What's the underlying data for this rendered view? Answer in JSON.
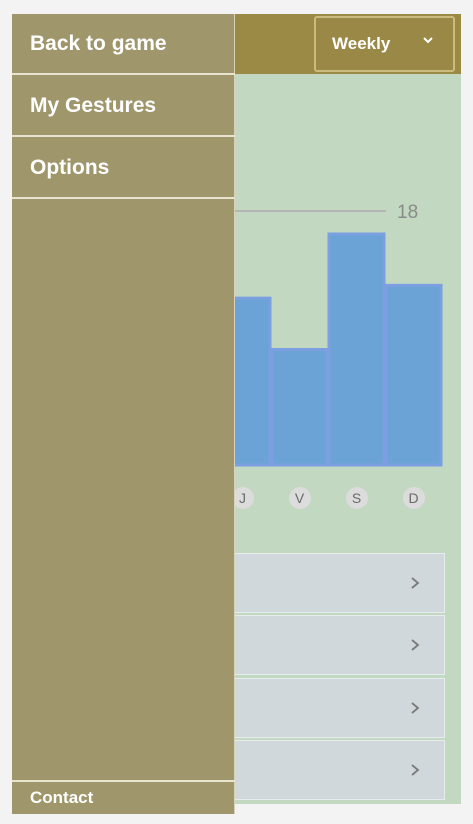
{
  "header": {
    "period_select": {
      "value": "Weekly",
      "icon": "chevron-down-icon"
    }
  },
  "chart_data": {
    "type": "bar",
    "categories": [
      "J",
      "V",
      "S",
      "D"
    ],
    "values": [
      13,
      9,
      18,
      14
    ],
    "reference_line": {
      "value": 18,
      "label": "18"
    },
    "ylim": [
      0,
      18
    ],
    "grid": false,
    "colors": {
      "bar": "#6ba3d6",
      "bar_border": "#7b9fe0",
      "reference_line": "#b5b5b5"
    }
  },
  "list": {
    "rows": [
      {
        "chevron": "chevron-right-icon"
      },
      {
        "chevron": "chevron-right-icon"
      },
      {
        "chevron": "chevron-right-icon"
      },
      {
        "chevron": "chevron-right-icon"
      }
    ]
  },
  "drawer": {
    "items": [
      {
        "label": "Back to game"
      },
      {
        "label": "My Gestures"
      },
      {
        "label": "Options"
      }
    ],
    "footer_label": "Contact"
  },
  "colors": {
    "drawer_bg": "#9f966b",
    "header_bg": "#9b8a45",
    "app_bg": "#c2d8c1",
    "list_row_bg": "#d1d8db"
  }
}
